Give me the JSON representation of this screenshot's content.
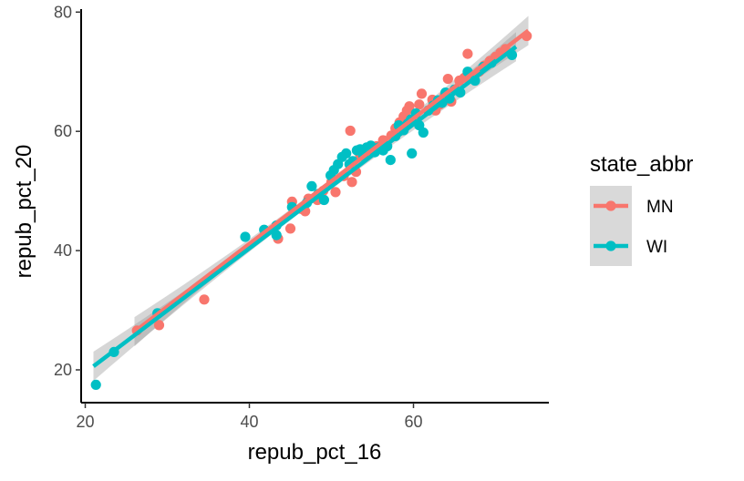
{
  "chart_data": {
    "type": "scatter",
    "title": "",
    "xlabel": "repub_pct_16",
    "ylabel": "repub_pct_20",
    "xlim": [
      19.5,
      76.5
    ],
    "ylim": [
      14.5,
      80.5
    ],
    "x_ticks": [
      20,
      40,
      60
    ],
    "y_ticks": [
      20,
      40,
      60,
      80
    ],
    "grid": false,
    "legend": {
      "title": "state_abbr",
      "placement": "right",
      "entries": [
        "MN",
        "WI"
      ]
    },
    "series": [
      {
        "name": "MN",
        "color": "#F8766D",
        "fit_line": {
          "x": [
            26,
            74
          ],
          "y": [
            26.4,
            76.9
          ]
        },
        "points": [
          [
            26.3,
            26.6
          ],
          [
            29.0,
            27.5
          ],
          [
            34.5,
            31.8
          ],
          [
            43.5,
            42.0
          ],
          [
            45.0,
            43.7
          ],
          [
            45.2,
            48.2
          ],
          [
            46.3,
            47.0
          ],
          [
            46.8,
            46.6
          ],
          [
            47.2,
            48.7
          ],
          [
            48.3,
            48.5
          ],
          [
            49.0,
            50.0
          ],
          [
            50.0,
            51.5
          ],
          [
            50.5,
            49.8
          ],
          [
            51.5,
            52.5
          ],
          [
            52.3,
            60.1
          ],
          [
            52.5,
            51.5
          ],
          [
            53.0,
            53.2
          ],
          [
            53.5,
            56.0
          ],
          [
            54.5,
            56.5
          ],
          [
            55.5,
            57.5
          ],
          [
            56.3,
            58.5
          ],
          [
            57.3,
            59.3
          ],
          [
            57.8,
            60.5
          ],
          [
            58.3,
            61.5
          ],
          [
            58.8,
            62.5
          ],
          [
            59.2,
            63.5
          ],
          [
            59.5,
            64.2
          ],
          [
            60.2,
            62.3
          ],
          [
            60.7,
            64.5
          ],
          [
            61.0,
            66.3
          ],
          [
            61.8,
            63.5
          ],
          [
            62.3,
            65.3
          ],
          [
            62.7,
            63.5
          ],
          [
            63.2,
            64.5
          ],
          [
            63.8,
            66.0
          ],
          [
            64.2,
            68.8
          ],
          [
            64.6,
            65.0
          ],
          [
            65.2,
            67.0
          ],
          [
            65.6,
            68.5
          ],
          [
            66.2,
            69.0
          ],
          [
            66.6,
            73.0
          ],
          [
            67.3,
            69.0
          ],
          [
            68.0,
            70.0
          ],
          [
            68.6,
            71.0
          ],
          [
            69.3,
            71.8
          ],
          [
            70.0,
            72.5
          ],
          [
            70.6,
            73.2
          ],
          [
            71.2,
            73.8
          ],
          [
            73.8,
            76.0
          ]
        ]
      },
      {
        "name": "WI",
        "color": "#00BFC4",
        "fit_line": {
          "x": [
            21,
            72.5
          ],
          "y": [
            20.6,
            74.2
          ]
        },
        "points": [
          [
            21.3,
            17.5
          ],
          [
            23.5,
            23.0
          ],
          [
            28.8,
            29.5
          ],
          [
            39.5,
            42.3
          ],
          [
            41.8,
            43.5
          ],
          [
            43.3,
            42.6
          ],
          [
            43.3,
            44.2
          ],
          [
            45.2,
            47.3
          ],
          [
            47.0,
            48.0
          ],
          [
            47.6,
            50.8
          ],
          [
            48.4,
            49.5
          ],
          [
            49.1,
            48.5
          ],
          [
            49.9,
            52.6
          ],
          [
            50.3,
            53.5
          ],
          [
            50.8,
            54.5
          ],
          [
            51.3,
            55.7
          ],
          [
            51.8,
            56.3
          ],
          [
            52.2,
            54.5
          ],
          [
            52.6,
            55.0
          ],
          [
            53.1,
            56.8
          ],
          [
            53.5,
            57.0
          ],
          [
            53.9,
            55.8
          ],
          [
            54.3,
            57.3
          ],
          [
            54.8,
            57.6
          ],
          [
            55.3,
            56.5
          ],
          [
            55.8,
            57.3
          ],
          [
            56.3,
            56.8
          ],
          [
            56.8,
            57.5
          ],
          [
            57.2,
            55.2
          ],
          [
            57.8,
            59.2
          ],
          [
            58.2,
            61.0
          ],
          [
            58.8,
            60.2
          ],
          [
            59.3,
            61.3
          ],
          [
            59.7,
            62.0
          ],
          [
            59.8,
            56.3
          ],
          [
            60.3,
            63.0
          ],
          [
            60.7,
            61.0
          ],
          [
            61.2,
            59.8
          ],
          [
            61.8,
            63.5
          ],
          [
            62.4,
            64.3
          ],
          [
            63.0,
            65.2
          ],
          [
            63.5,
            64.8
          ],
          [
            63.9,
            66.5
          ],
          [
            64.4,
            65.5
          ],
          [
            65.0,
            67.0
          ],
          [
            65.7,
            66.5
          ],
          [
            66.6,
            70.0
          ],
          [
            67.5,
            68.5
          ],
          [
            68.5,
            70.8
          ],
          [
            69.5,
            71.5
          ],
          [
            72.0,
            72.8
          ]
        ]
      }
    ]
  }
}
